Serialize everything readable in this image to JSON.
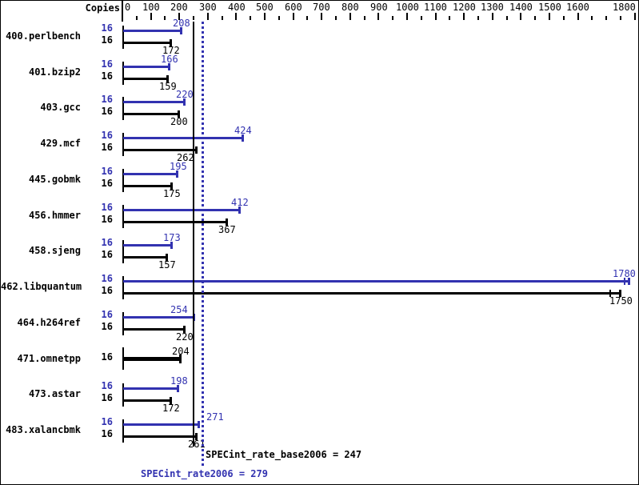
{
  "chart_data": {
    "type": "bar",
    "orientation": "horizontal",
    "copies_header": "Copies",
    "axis": {
      "min": 0,
      "max": 1800,
      "minor_step": 50,
      "major_step": 100,
      "tick_labels": [
        "0",
        "100",
        "200",
        "300",
        "400",
        "500",
        "600",
        "700",
        "800",
        "900",
        "1000",
        "1100",
        "1200",
        "1300",
        "1400",
        "1500",
        "1600",
        "1800"
      ],
      "grid": false
    },
    "benchmarks": [
      {
        "name": "400.perlbench",
        "copies": 16,
        "peak": 208,
        "base": 172
      },
      {
        "name": "401.bzip2",
        "copies": 16,
        "peak": 166,
        "base": 159
      },
      {
        "name": "403.gcc",
        "copies": 16,
        "peak": 220,
        "base": 200
      },
      {
        "name": "429.mcf",
        "copies": 16,
        "peak": 424,
        "base": 262
      },
      {
        "name": "445.gobmk",
        "copies": 16,
        "peak": 195,
        "base": 175
      },
      {
        "name": "456.hmmer",
        "copies": 16,
        "peak": 412,
        "base": 367
      },
      {
        "name": "458.sjeng",
        "copies": 16,
        "peak": 173,
        "base": 157
      },
      {
        "name": "462.libquantum",
        "copies": 16,
        "peak": 1780,
        "base": 1750,
        "double_end_tick": true
      },
      {
        "name": "464.h264ref",
        "copies": 16,
        "peak": 254,
        "base": 220
      },
      {
        "name": "471.omnetpp",
        "copies": 16,
        "peak": 204,
        "base": 204,
        "single_bar": true
      },
      {
        "name": "473.astar",
        "copies": 16,
        "peak": 198,
        "base": 172
      },
      {
        "name": "483.xalancbmk",
        "copies": 16,
        "peak": 271,
        "base": 261
      }
    ],
    "summary": {
      "base_label": "SPECint_rate_base2006",
      "base_value": 247,
      "base_text": "SPECint_rate_base2006 = 247",
      "peak_label": "SPECint_rate2006",
      "peak_value": 279,
      "peak_text": "SPECint_rate2006 = 279"
    },
    "colors": {
      "peak_blue": "#3232b0",
      "base_black": "#000000"
    }
  }
}
